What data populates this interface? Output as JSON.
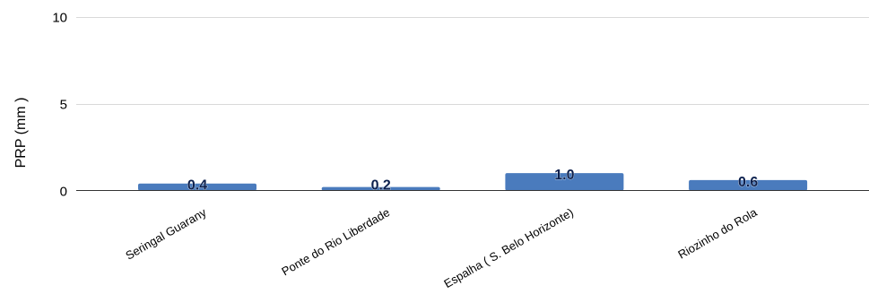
{
  "chart_data": {
    "type": "bar",
    "categories": [
      "Seringal Guarany",
      "Ponte do Rio Liberdade",
      "Espalha ( S. Belo Horizonte)",
      "Riozinho do Rola"
    ],
    "values": [
      0.4,
      0.2,
      1.0,
      0.6
    ],
    "data_labels": [
      "0.4",
      "0.2",
      "1.0",
      "0.6"
    ],
    "ylabel": "PRP (mm )",
    "xlabel": "",
    "ylim": [
      0,
      10
    ],
    "yticks": [
      0,
      5,
      10
    ],
    "grid": true,
    "legend": "none",
    "bar_color": "#4a7bbd",
    "gridline_color": "#d9d9d9"
  }
}
